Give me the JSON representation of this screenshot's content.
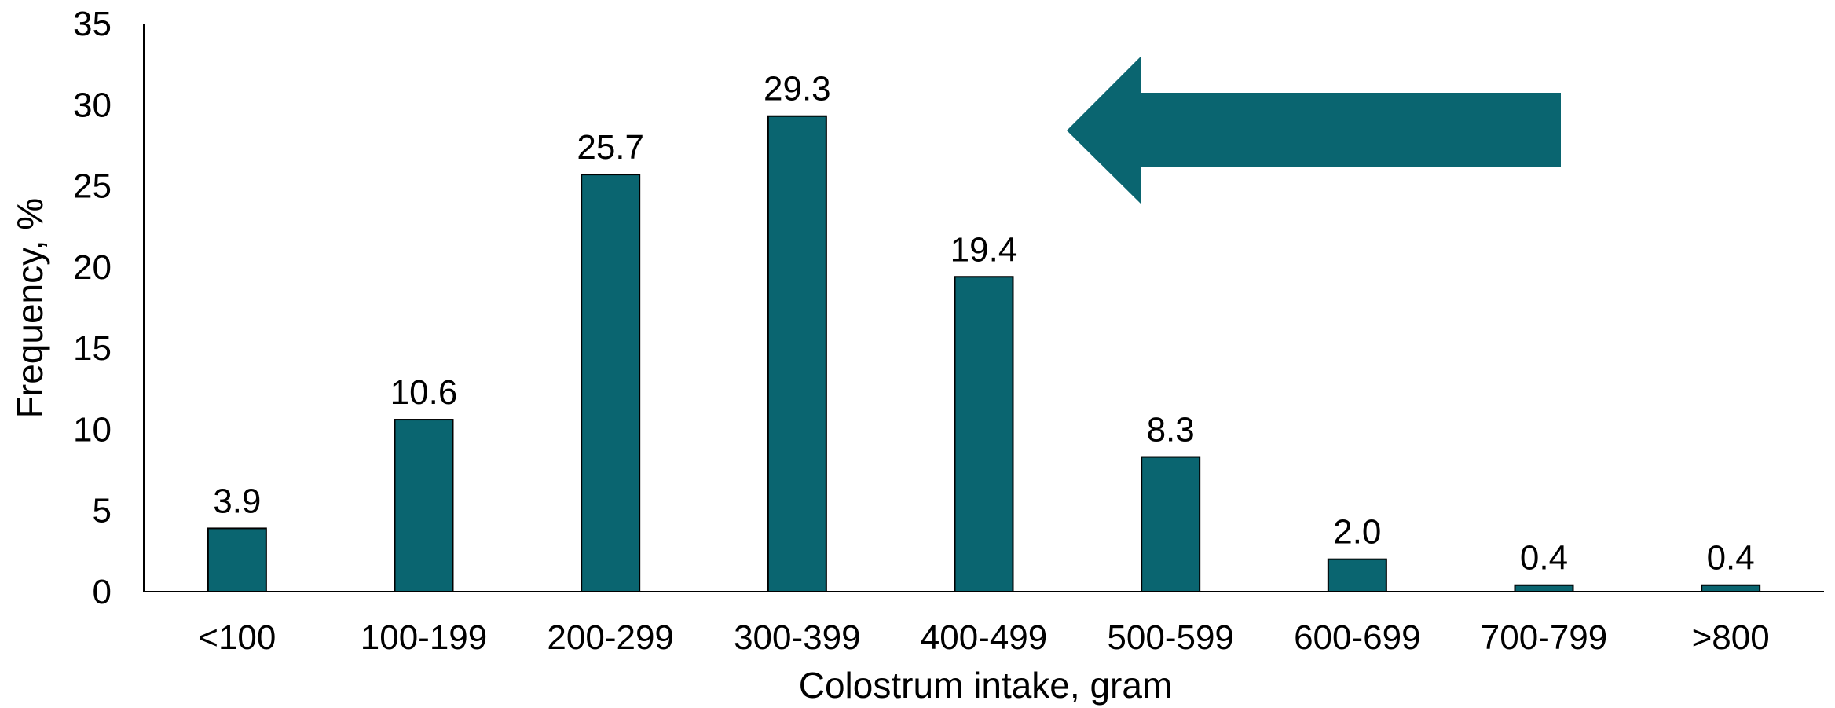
{
  "chart_data": {
    "type": "bar",
    "categories": [
      "<100",
      "100-199",
      "200-299",
      "300-399",
      "400-499",
      "500-599",
      "600-699",
      "700-799",
      ">800"
    ],
    "values": [
      3.9,
      10.6,
      25.7,
      29.3,
      19.4,
      8.3,
      2.0,
      0.4,
      0.4
    ],
    "data_labels": [
      "3.9",
      "10.6",
      "25.7",
      "29.3",
      "19.4",
      "8.3",
      "2.0",
      "0.4",
      "0.4"
    ],
    "xlabel": "Colostrum intake, gram",
    "ylabel": "Frequency, %",
    "ylim": [
      0,
      35
    ],
    "yticks": [
      "0",
      "5",
      "10",
      "15",
      "20",
      "25",
      "30",
      "35"
    ],
    "grid": false,
    "legend": "none",
    "annotations": [
      {
        "type": "arrow",
        "direction": "left"
      }
    ]
  },
  "colors": {
    "bar_fill": "#0a6570",
    "bar_stroke": "#000000",
    "arrow_fill": "#0a6570",
    "axis": "#000000"
  }
}
